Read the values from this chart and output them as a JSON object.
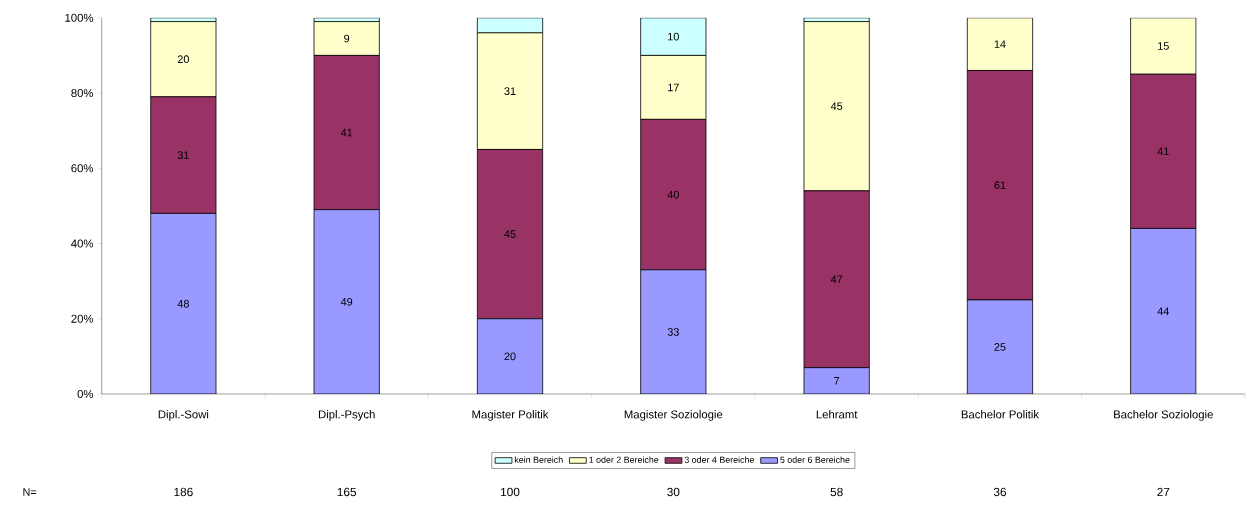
{
  "chart_data": {
    "type": "bar",
    "stacked": true,
    "categories": [
      "Dipl.-Sowi",
      "Dipl.-Psych",
      "Magister Politik",
      "Magister Soziologie",
      "Lehramt",
      "Bachelor Politik",
      "Bachelor Soziologie"
    ],
    "series": [
      {
        "name": "5 oder 6 Bereiche",
        "color": "#9999ff",
        "values": [
          48,
          49,
          20,
          33,
          7,
          25,
          44
        ],
        "value_labels": [
          "48",
          "49",
          "20",
          "33",
          "7",
          "25",
          "44"
        ]
      },
      {
        "name": "3 oder 4 Bereiche",
        "color": "#993366",
        "values": [
          31,
          41,
          45,
          40,
          47,
          61,
          41
        ],
        "value_labels": [
          "31",
          "41",
          "45",
          "40",
          "47",
          "61",
          "41"
        ]
      },
      {
        "name": "1 oder 2 Bereiche",
        "color": "#ffffcc",
        "values": [
          20,
          9,
          31,
          17,
          45,
          14,
          15
        ],
        "value_labels": [
          "20",
          "9",
          "31",
          "17",
          "45",
          "14",
          "15"
        ]
      },
      {
        "name": "kein Bereich",
        "color": "#ccffff",
        "values": [
          1,
          1,
          4,
          10,
          1,
          0,
          0
        ],
        "value_labels": [
          null,
          null,
          null,
          "10",
          null,
          null,
          null
        ]
      }
    ],
    "ylim": [
      0,
      100
    ],
    "yticks": [
      {
        "value": 0,
        "label": "0%"
      },
      {
        "value": 20,
        "label": "20%"
      },
      {
        "value": 40,
        "label": "40%"
      },
      {
        "value": 60,
        "label": "60%"
      },
      {
        "value": 80,
        "label": "80%"
      },
      {
        "value": 100,
        "label": "100%"
      }
    ],
    "legend": "bottom",
    "annotations": [
      "N=",
      "186",
      "165",
      "100",
      "30",
      "58",
      "36",
      "27"
    ]
  }
}
